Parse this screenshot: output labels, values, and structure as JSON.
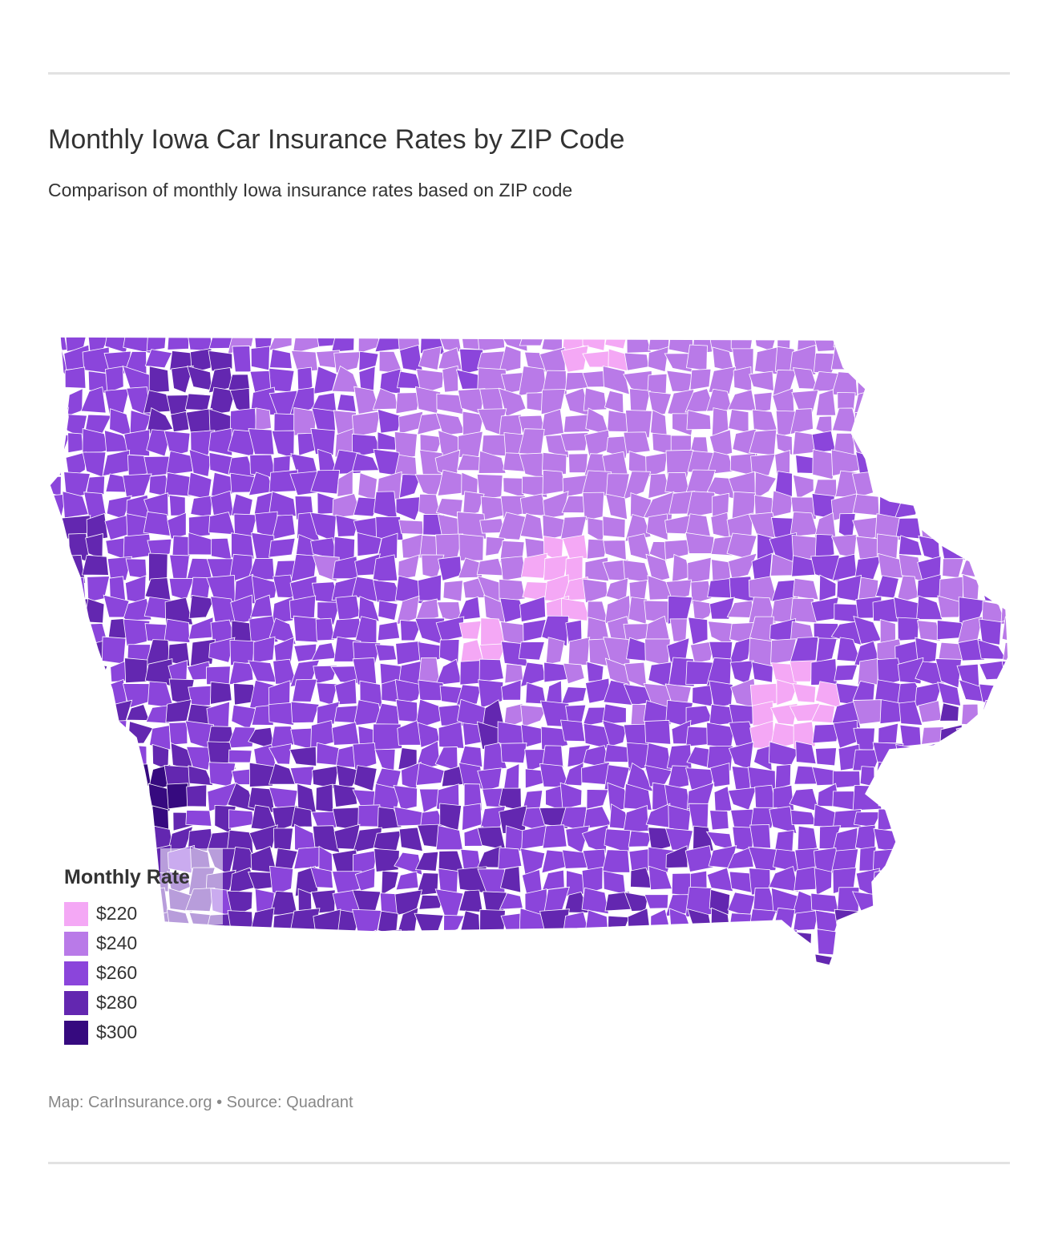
{
  "header": {
    "title": "Monthly Iowa Car Insurance Rates by ZIP Code",
    "subtitle": "Comparison of monthly Iowa insurance rates based on ZIP code"
  },
  "legend": {
    "title": "Monthly Rate",
    "items": [
      {
        "label": "$220",
        "color": "#f4a8f5"
      },
      {
        "label": "$240",
        "color": "#b97ae8"
      },
      {
        "label": "$260",
        "color": "#8b45db"
      },
      {
        "label": "$280",
        "color": "#6327b0"
      },
      {
        "label": "$300",
        "color": "#360a7f"
      }
    ]
  },
  "footer": {
    "source": "Map: CarInsurance.org • Source: Quadrant"
  },
  "colors": {
    "rule": "#e2e2e2",
    "border": "#ffffff",
    "title_text": "#333333",
    "source_text": "#888888"
  }
}
